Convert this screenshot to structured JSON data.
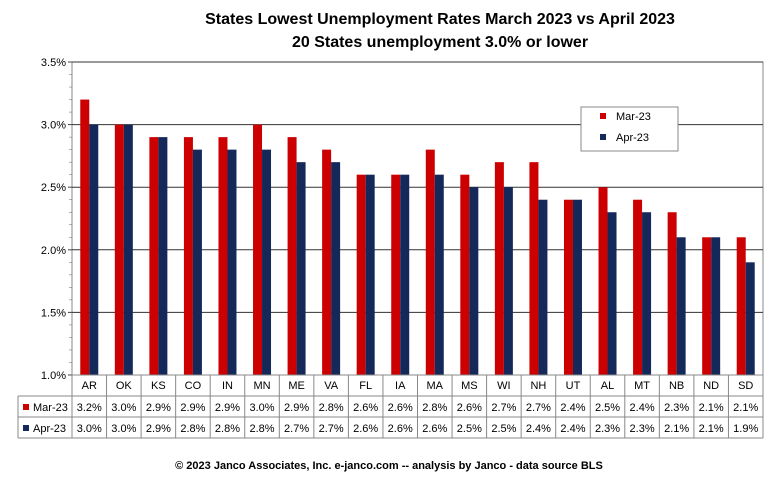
{
  "chart_data": {
    "type": "bar",
    "title": "States Lowest Unemployment Rates March 2023 vs April 2023",
    "subtitle": "20 States  unemployment 3.0% or lower",
    "categories": [
      "AR",
      "OK",
      "KS",
      "CO",
      "IN",
      "MN",
      "ME",
      "VA",
      "FL",
      "IA",
      "MA",
      "MS",
      "WI",
      "NH",
      "UT",
      "AL",
      "MT",
      "NB",
      "ND",
      "SD"
    ],
    "series": [
      {
        "name": "Mar-23",
        "color": "#cc0000",
        "values": [
          3.2,
          3.0,
          2.9,
          2.9,
          2.9,
          3.0,
          2.9,
          2.8,
          2.6,
          2.6,
          2.8,
          2.6,
          2.7,
          2.7,
          2.4,
          2.5,
          2.4,
          2.3,
          2.1,
          2.1
        ]
      },
      {
        "name": "Apr-23",
        "color": "#14285a",
        "values": [
          3.0,
          3.0,
          2.9,
          2.8,
          2.8,
          2.8,
          2.7,
          2.7,
          2.6,
          2.6,
          2.6,
          2.5,
          2.5,
          2.4,
          2.4,
          2.3,
          2.3,
          2.1,
          2.1,
          1.9
        ]
      }
    ],
    "table_rows": [
      [
        "3.2%",
        "3.0%",
        "2.9%",
        "2.9%",
        "2.9%",
        "3.0%",
        "2.9%",
        "2.8%",
        "2.6%",
        "2.6%",
        "2.8%",
        "2.6%",
        "2.7%",
        "2.7%",
        "2.4%",
        "2.5%",
        "2.4%",
        "2.3%",
        "2.1%",
        "2.1%"
      ],
      [
        "3.0%",
        "3.0%",
        "2.9%",
        "2.8%",
        "2.8%",
        "2.8%",
        "2.7%",
        "2.7%",
        "2.6%",
        "2.6%",
        "2.6%",
        "2.5%",
        "2.5%",
        "2.4%",
        "2.4%",
        "2.3%",
        "2.3%",
        "2.1%",
        "2.1%",
        "1.9%"
      ]
    ],
    "ylim": [
      1.0,
      3.5
    ],
    "yticks": [
      "1.0%",
      "1.5%",
      "2.0%",
      "2.5%",
      "3.0%",
      "3.5%"
    ],
    "xlabel": "",
    "ylabel": "",
    "grid": true,
    "legend_position": "top-right",
    "plot_background": "#ffffff"
  },
  "footer": "© 2023 Janco Associates, Inc. e-janco.com -- analysis by Janco - data source BLS"
}
